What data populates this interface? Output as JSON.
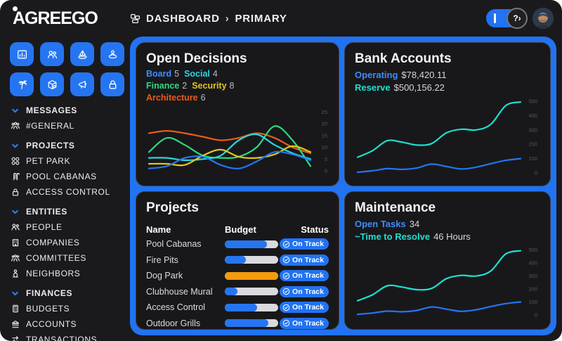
{
  "window": {
    "background": "#1a1a1d",
    "accent_blue": "#2173f2"
  },
  "header": {
    "logo_text": "AGREEGO",
    "breadcrumb": {
      "icon": "dashboard-grid-icon",
      "section": "DASHBOARD",
      "separator": "›",
      "page": "PRIMARY"
    },
    "sidebar_toggle_label": "I",
    "help_label": "?›"
  },
  "sidebar": {
    "quick_actions": [
      {
        "icon": "chart-document-icon"
      },
      {
        "icon": "people-icon"
      },
      {
        "icon": "sailboat-icon"
      },
      {
        "icon": "pool-float-icon"
      },
      {
        "icon": "palm-tree-icon"
      },
      {
        "icon": "package-icon"
      },
      {
        "icon": "megaphone-icon"
      },
      {
        "icon": "padlock-icon"
      }
    ],
    "sections": [
      {
        "label": "MESSAGES",
        "items": [
          {
            "label": "#GENERAL",
            "icon": "community-icon"
          }
        ]
      },
      {
        "label": "PROJECTS",
        "items": [
          {
            "label": "PET PARK",
            "icon": "paw-icon"
          },
          {
            "label": "POOL CABANAS",
            "icon": "pool-ladder-icon"
          },
          {
            "label": "ACCESS CONTROL",
            "icon": "padlock-icon"
          }
        ]
      },
      {
        "label": "ENTITIES",
        "items": [
          {
            "label": "PEOPLE",
            "icon": "people-icon"
          },
          {
            "label": "COMPANIES",
            "icon": "building-icon"
          },
          {
            "label": "COMMITTEES",
            "icon": "group-icon"
          },
          {
            "label": "NEIGHBORS",
            "icon": "person-statue-icon"
          }
        ]
      },
      {
        "label": "FINANCES",
        "items": [
          {
            "label": "BUDGETS",
            "icon": "calculator-icon"
          },
          {
            "label": "ACCOUNTS",
            "icon": "bank-icon"
          },
          {
            "label": "TRANSACTIONS",
            "icon": "transfer-arrows-icon"
          }
        ]
      }
    ]
  },
  "cards": {
    "open_decisions": {
      "title": "Open Decisions",
      "legend": [
        {
          "label": "Board",
          "count": "5",
          "color": "#3f8cfe"
        },
        {
          "label": "Social",
          "count": "4",
          "color": "#2bd6de"
        },
        {
          "label": "Finance",
          "count": "2",
          "color": "#2dd981"
        },
        {
          "label": "Security",
          "count": "8",
          "color": "#e3c519"
        },
        {
          "label": "Architecture",
          "count": "6",
          "color": "#ea5c17"
        }
      ]
    },
    "bank_accounts": {
      "title": "Bank Accounts",
      "stats": [
        {
          "label": "Operating",
          "value": "$78,420.11",
          "color": "#3f8cfe"
        },
        {
          "label": "Reserve",
          "value": "$500,156.22",
          "color": "#1fe0cf"
        }
      ]
    },
    "projects": {
      "title": "Projects",
      "columns": [
        "Name",
        "Budget",
        "Status"
      ],
      "rows": [
        {
          "name": "Pool Cabanas",
          "budget_pct": 79,
          "bar_color": "#2575f2",
          "status": "On Track"
        },
        {
          "name": "Fire Pits",
          "budget_pct": 40,
          "bar_color": "#2575f2",
          "status": "On Track"
        },
        {
          "name": "Dog Park",
          "budget_pct": 100,
          "bar_color": "#f59c0c",
          "status": "On Track"
        },
        {
          "name": "Clubhouse Mural",
          "budget_pct": 24,
          "bar_color": "#2575f2",
          "status": "On Track"
        },
        {
          "name": "Access Control",
          "budget_pct": 60,
          "bar_color": "#2575f2",
          "status": "On Track"
        },
        {
          "name": "Outdoor Grills",
          "budget_pct": 82,
          "bar_color": "#2575f2",
          "status": "On Track"
        }
      ]
    },
    "maintenance": {
      "title": "Maintenance",
      "stats": [
        {
          "label": "Open Tasks",
          "value": "34",
          "color": "#3f8cfe"
        },
        {
          "label": "~Time to Resolve",
          "value": "46 Hours",
          "color": "#1fe0cf"
        }
      ]
    }
  },
  "chart_data": [
    {
      "mount": "chart-decisions",
      "type": "line",
      "title": "Open Decisions",
      "ylim": [
        0,
        26
      ],
      "yticks": [
        0,
        5,
        10,
        15,
        20,
        25
      ],
      "grid": false,
      "legend_position": "top-left",
      "series": [
        {
          "name": "Architecture",
          "color": "#ea5c17",
          "values": [
            16,
            17,
            16,
            14.5,
            13,
            14,
            16,
            14,
            10,
            7.5
          ]
        },
        {
          "name": "Finance",
          "color": "#2dd981",
          "values": [
            8,
            14,
            11,
            6.5,
            5.5,
            6,
            10,
            19,
            13,
            2
          ]
        },
        {
          "name": "Social",
          "color": "#2bd6de",
          "values": [
            5.5,
            5.5,
            4.5,
            5,
            6.5,
            13,
            15.5,
            11,
            7.5,
            5
          ]
        },
        {
          "name": "Security",
          "color": "#e3c519",
          "values": [
            3,
            3,
            2.5,
            6.5,
            9,
            6,
            5.5,
            7,
            10.5,
            8
          ]
        },
        {
          "name": "Board",
          "color": "#2575f2",
          "values": [
            1,
            2,
            5.5,
            6,
            2.5,
            1,
            4,
            8,
            7,
            4.5
          ]
        }
      ]
    },
    {
      "mount": "chart-bank",
      "type": "line",
      "title": "Bank Accounts",
      "ylim": [
        0,
        520
      ],
      "yticks": [
        0,
        100,
        200,
        300,
        400,
        500
      ],
      "grid": false,
      "series": [
        {
          "name": "Reserve",
          "color": "#1fe0cf",
          "values": [
            110,
            155,
            225,
            215,
            195,
            205,
            280,
            305,
            300,
            340,
            470,
            495
          ]
        },
        {
          "name": "Operating",
          "color": "#2575f2",
          "values": [
            5,
            15,
            30,
            25,
            35,
            62,
            45,
            28,
            40,
            65,
            88,
            100
          ]
        }
      ]
    },
    {
      "mount": "chart-maintenance",
      "type": "line",
      "title": "Maintenance",
      "ylim": [
        0,
        520
      ],
      "yticks": [
        0,
        100,
        200,
        300,
        400,
        500
      ],
      "grid": false,
      "series": [
        {
          "name": "~Time to Resolve",
          "color": "#1fe0cf",
          "values": [
            110,
            155,
            225,
            215,
            195,
            205,
            280,
            305,
            300,
            340,
            470,
            495
          ]
        },
        {
          "name": "Open Tasks",
          "color": "#2575f2",
          "values": [
            5,
            15,
            30,
            25,
            35,
            62,
            45,
            28,
            40,
            65,
            88,
            100
          ]
        }
      ]
    }
  ]
}
